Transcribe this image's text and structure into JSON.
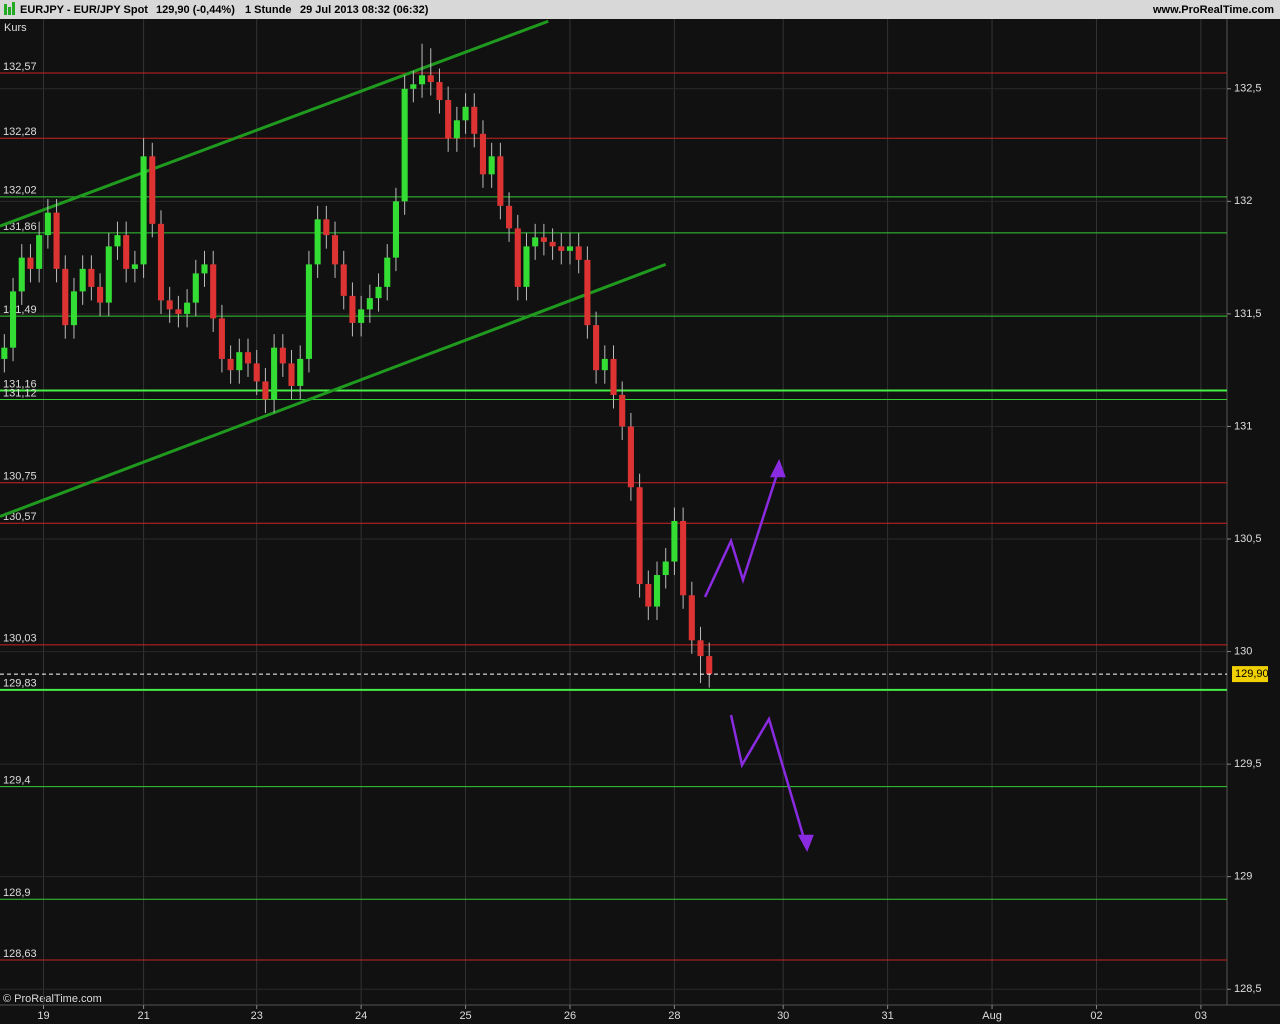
{
  "chart_data": {
    "type": "candlestick",
    "title": "EURJPY - EUR/JPY Spot",
    "subtitle": "129,90 (-0,44%)",
    "interval": "1 Stunde",
    "timestamp": "29 Jul 2013 08:32 (06:32)",
    "source": "www.ProRealTime.com",
    "ylabel": "Kurs",
    "copyright": "© ProRealTime.com",
    "xlim": [
      0,
      282
    ],
    "ylim": [
      128.43,
      132.81
    ],
    "xticks": [
      {
        "value": 10,
        "label": "19"
      },
      {
        "value": 33,
        "label": "21"
      },
      {
        "value": 59,
        "label": "23"
      },
      {
        "value": 83,
        "label": "24"
      },
      {
        "value": 107,
        "label": "25"
      },
      {
        "value": 131,
        "label": "26"
      },
      {
        "value": 155,
        "label": "28"
      },
      {
        "value": 180,
        "label": "30"
      },
      {
        "value": 204,
        "label": "31"
      },
      {
        "value": 228,
        "label": "Aug"
      },
      {
        "value": 252,
        "label": "02"
      },
      {
        "value": 276,
        "label": "03"
      }
    ],
    "yticks": [
      {
        "value": 132.5,
        "label": "132,5"
      },
      132,
      {
        "value": 131.5,
        "label": "131,5"
      },
      131,
      {
        "value": 130.5,
        "label": "130,5"
      },
      130,
      {
        "value": 129.5,
        "label": "129,5"
      },
      129,
      {
        "value": 128.5,
        "label": "128,5"
      }
    ],
    "grid": true,
    "up_color": "#33dd33",
    "down_color": "#dd3333",
    "candles": {
      "x": [
        1,
        3,
        5,
        7,
        9,
        11,
        13,
        15,
        17,
        19,
        21,
        23,
        25,
        27,
        29,
        31,
        33,
        35,
        37,
        39,
        41,
        43,
        45,
        47,
        49,
        51,
        53,
        55,
        57,
        59,
        61,
        63,
        65,
        67,
        69,
        71,
        73,
        75,
        77,
        79,
        81,
        83,
        85,
        87,
        89,
        91,
        93,
        95,
        97,
        99,
        101,
        103,
        105,
        107,
        109,
        111,
        113,
        115,
        117,
        119,
        121,
        123,
        125,
        127,
        129,
        131,
        133,
        135,
        137,
        139,
        141,
        143,
        145,
        147,
        149,
        151,
        153,
        155,
        157,
        159,
        161,
        163
      ],
      "open": [
        131.3,
        131.35,
        131.6,
        131.75,
        131.7,
        131.85,
        131.95,
        131.7,
        131.45,
        131.6,
        131.7,
        131.62,
        131.55,
        131.8,
        131.85,
        131.7,
        131.72,
        132.2,
        131.9,
        131.56,
        131.52,
        131.5,
        131.55,
        131.68,
        131.72,
        131.48,
        131.3,
        131.25,
        131.33,
        131.28,
        131.2,
        131.12,
        131.35,
        131.28,
        131.18,
        131.3,
        131.72,
        131.92,
        131.85,
        131.72,
        131.58,
        131.46,
        131.52,
        131.57,
        131.62,
        131.75,
        132.0,
        132.5,
        132.52,
        132.56,
        132.53,
        132.45,
        132.28,
        132.36,
        132.42,
        132.3,
        132.12,
        132.2,
        131.98,
        131.88,
        131.62,
        131.8,
        131.84,
        131.82,
        131.8,
        131.78,
        131.8,
        131.74,
        131.45,
        131.25,
        131.3,
        131.14,
        131.0,
        130.73,
        130.3,
        130.2,
        130.34,
        130.4,
        130.58,
        130.25,
        130.05,
        129.98
      ],
      "high": [
        131.41,
        131.66,
        131.81,
        131.81,
        131.91,
        132.01,
        132.01,
        131.76,
        131.66,
        131.76,
        131.76,
        131.68,
        131.86,
        131.91,
        131.91,
        131.78,
        132.28,
        132.26,
        131.96,
        131.62,
        131.58,
        131.61,
        131.74,
        131.78,
        131.78,
        131.54,
        131.36,
        131.39,
        131.39,
        131.34,
        131.26,
        131.41,
        131.41,
        131.34,
        131.36,
        131.78,
        131.98,
        131.98,
        131.91,
        131.78,
        131.64,
        131.58,
        131.63,
        131.68,
        131.81,
        132.06,
        132.56,
        132.58,
        132.7,
        132.68,
        132.59,
        132.51,
        132.42,
        132.48,
        132.48,
        132.36,
        132.26,
        132.26,
        132.04,
        131.94,
        131.86,
        131.9,
        131.9,
        131.88,
        131.86,
        131.86,
        131.86,
        131.8,
        131.51,
        131.36,
        131.36,
        131.2,
        131.06,
        130.79,
        130.36,
        130.4,
        130.46,
        130.64,
        130.64,
        130.31,
        130.11,
        130.04
      ],
      "low": [
        131.24,
        131.29,
        131.54,
        131.64,
        131.64,
        131.79,
        131.64,
        131.39,
        131.39,
        131.54,
        131.56,
        131.49,
        131.49,
        131.74,
        131.64,
        131.64,
        131.66,
        131.84,
        131.5,
        131.46,
        131.44,
        131.44,
        131.49,
        131.62,
        131.42,
        131.24,
        131.19,
        131.19,
        131.22,
        131.14,
        131.06,
        131.06,
        131.22,
        131.12,
        131.12,
        131.24,
        131.66,
        131.79,
        131.66,
        131.52,
        131.4,
        131.4,
        131.46,
        131.51,
        131.56,
        131.69,
        131.94,
        132.44,
        132.46,
        132.47,
        132.39,
        132.22,
        132.22,
        132.3,
        132.24,
        132.06,
        132.06,
        131.92,
        131.82,
        131.56,
        131.56,
        131.74,
        131.76,
        131.74,
        131.72,
        131.72,
        131.68,
        131.39,
        131.19,
        131.19,
        131.08,
        130.94,
        130.67,
        130.24,
        130.14,
        130.14,
        130.28,
        130.34,
        130.19,
        129.99,
        129.86,
        129.84
      ],
      "close": [
        131.35,
        131.6,
        131.75,
        131.7,
        131.85,
        131.95,
        131.7,
        131.45,
        131.6,
        131.7,
        131.62,
        131.55,
        131.8,
        131.85,
        131.7,
        131.72,
        132.2,
        131.9,
        131.56,
        131.52,
        131.5,
        131.55,
        131.68,
        131.72,
        131.48,
        131.3,
        131.25,
        131.33,
        131.28,
        131.2,
        131.12,
        131.35,
        131.28,
        131.18,
        131.3,
        131.72,
        131.92,
        131.85,
        131.72,
        131.58,
        131.46,
        131.52,
        131.57,
        131.62,
        131.75,
        132.0,
        132.5,
        132.52,
        132.56,
        132.53,
        132.45,
        132.28,
        132.36,
        132.42,
        132.3,
        132.12,
        132.2,
        131.98,
        131.88,
        131.62,
        131.8,
        131.84,
        131.82,
        131.8,
        131.78,
        131.8,
        131.74,
        131.45,
        131.25,
        131.3,
        131.14,
        131.0,
        130.73,
        130.3,
        130.2,
        130.34,
        130.4,
        130.58,
        130.25,
        130.05,
        129.98,
        129.9
      ]
    },
    "levels": [
      {
        "value": 132.57,
        "label": "132,57",
        "color": "#cc2222"
      },
      {
        "value": 132.28,
        "label": "132,28",
        "color": "#cc2222"
      },
      {
        "value": 132.02,
        "label": "132,02",
        "color": "#33cc33"
      },
      {
        "value": 131.86,
        "label": "131,86",
        "color": "#33cc33"
      },
      {
        "value": 131.49,
        "label": "131,49",
        "color": "#33cc33"
      },
      {
        "value": 131.16,
        "label": "131,16",
        "color": "#44ee44"
      },
      {
        "value": 131.12,
        "label": "131,12",
        "color": "#33cc33"
      },
      {
        "value": 130.75,
        "label": "130,75",
        "color": "#cc2222"
      },
      {
        "value": 130.57,
        "label": "130,57",
        "color": "#cc2222"
      },
      {
        "value": 130.03,
        "label": "130,03",
        "color": "#cc2222"
      },
      {
        "value": 129.83,
        "label": "129,83",
        "color": "#44ee44"
      },
      {
        "value": 129.4,
        "label": "129,4",
        "color": "#33cc33"
      },
      {
        "value": 128.9,
        "label": "128,9",
        "color": "#33cc33"
      },
      {
        "value": 128.63,
        "label": "128,63",
        "color": "#cc2222"
      }
    ],
    "trendlines": [
      {
        "x": [
          0,
          126
        ],
        "y": [
          131.89,
          132.8
        ],
        "color": "#1f9a1f"
      },
      {
        "x": [
          0,
          153
        ],
        "y": [
          130.6,
          131.72
        ],
        "color": "#1f9a1f"
      }
    ],
    "last": {
      "value": 129.9,
      "label": "129,90"
    }
  }
}
